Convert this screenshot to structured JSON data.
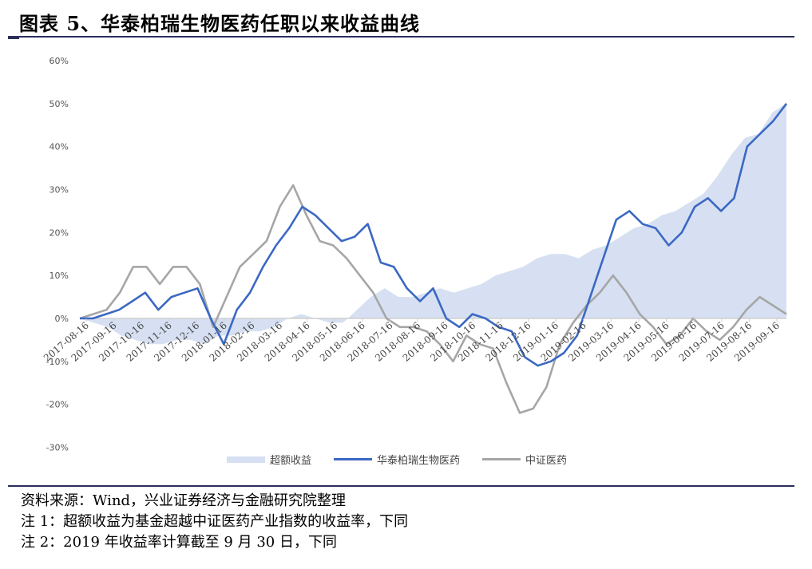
{
  "figure": {
    "title": "图表 5、华泰柏瑞生物医药任职以来收益曲线"
  },
  "legend": {
    "items": [
      {
        "label": "超额收益",
        "kind": "area",
        "color": "#d6e0f2"
      },
      {
        "label": "华泰柏瑞生物医药",
        "kind": "line",
        "color": "#3b68c4"
      },
      {
        "label": "中证医药",
        "kind": "line",
        "color": "#a6a6a6"
      }
    ]
  },
  "notes": {
    "source": "资料来源：Wind，兴业证券经济与金融研究院整理",
    "note1": "注 1：超额收益为基金超越中证医药产业指数的收益率，下同",
    "note2": "注 2：2019 年收益率计算截至 9 月 30 日，下同"
  },
  "chart_data": {
    "type": "line",
    "title": "华泰柏瑞生物医药任职以来收益曲线",
    "xlabel": "",
    "ylabel": "",
    "ylim": [
      -0.3,
      0.6
    ],
    "yticks": [
      "60%",
      "50%",
      "40%",
      "30%",
      "20%",
      "10%",
      "0%",
      "-10%",
      "-20%",
      "-30%"
    ],
    "ytick_values": [
      0.6,
      0.5,
      0.4,
      0.3,
      0.2,
      0.1,
      0.0,
      -0.1,
      -0.2,
      -0.3
    ],
    "categories": [
      "2017-08-16",
      "2017-09-16",
      "2017-10-16",
      "2017-11-16",
      "2017-12-16",
      "2018-01-16",
      "2018-02-16",
      "2018-03-16",
      "2018-04-16",
      "2018-05-16",
      "2018-06-16",
      "2018-07-16",
      "2018-08-16",
      "2018-09-16",
      "2018-10-16",
      "2018-11-16",
      "2018-12-16",
      "2019-01-16",
      "2019-02-16",
      "2019-03-16",
      "2019-04-16",
      "2019-05-16",
      "2019-06-16",
      "2019-07-16",
      "2019-08-16",
      "2019-09-16"
    ],
    "grid": false,
    "legend_position": "bottom",
    "x_index_step": 0.5,
    "series": [
      {
        "name": "超额收益",
        "type": "area",
        "values": [
          0.0,
          -0.01,
          -0.02,
          -0.04,
          -0.05,
          -0.06,
          -0.06,
          -0.05,
          -0.05,
          -0.06,
          -0.04,
          -0.04,
          -0.03,
          -0.03,
          -0.02,
          0.0,
          0.01,
          0.0,
          -0.01,
          -0.01,
          0.02,
          0.05,
          0.07,
          0.05,
          0.05,
          0.06,
          0.07,
          0.06,
          0.07,
          0.08,
          0.1,
          0.11,
          0.12,
          0.14,
          0.15,
          0.15,
          0.14,
          0.16,
          0.17,
          0.19,
          0.21,
          0.22,
          0.24,
          0.25,
          0.27,
          0.29,
          0.33,
          0.38,
          0.42,
          0.43,
          0.48,
          0.5
        ]
      },
      {
        "name": "华泰柏瑞生物医药",
        "type": "line",
        "values": [
          0.0,
          0.0,
          0.01,
          0.02,
          0.04,
          0.06,
          0.02,
          0.05,
          0.06,
          0.07,
          0.0,
          -0.06,
          0.02,
          0.06,
          0.12,
          0.17,
          0.21,
          0.26,
          0.24,
          0.21,
          0.18,
          0.19,
          0.22,
          0.13,
          0.12,
          0.07,
          0.04,
          0.07,
          0.0,
          -0.02,
          0.01,
          0.0,
          -0.02,
          -0.03,
          -0.09,
          -0.11,
          -0.1,
          -0.08,
          -0.04,
          0.05,
          0.14,
          0.23,
          0.25,
          0.22,
          0.21,
          0.17,
          0.2,
          0.26,
          0.28,
          0.25,
          0.28,
          0.4,
          0.43,
          0.46,
          0.5
        ]
      },
      {
        "name": "中证医药",
        "type": "line",
        "values": [
          0.0,
          0.01,
          0.02,
          0.06,
          0.12,
          0.12,
          0.08,
          0.12,
          0.12,
          0.08,
          -0.02,
          0.05,
          0.12,
          0.15,
          0.18,
          0.26,
          0.31,
          0.24,
          0.18,
          0.17,
          0.14,
          0.1,
          0.06,
          0.0,
          -0.02,
          -0.02,
          -0.03,
          -0.06,
          -0.1,
          -0.04,
          -0.06,
          -0.07,
          -0.15,
          -0.22,
          -0.21,
          -0.16,
          -0.06,
          -0.01,
          0.03,
          0.06,
          0.1,
          0.06,
          0.01,
          -0.02,
          -0.06,
          -0.04,
          0.0,
          -0.03,
          -0.05,
          -0.02,
          0.02,
          0.05,
          0.03,
          0.01
        ]
      }
    ]
  }
}
